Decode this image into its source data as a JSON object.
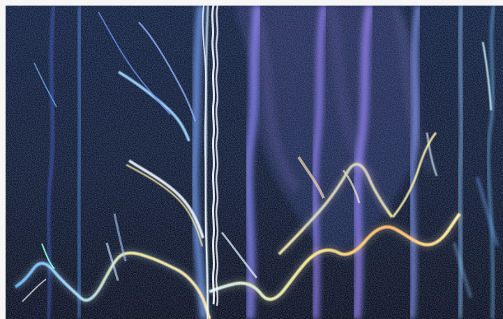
{
  "image": {
    "kind": "spectrogram-like abstract plot",
    "colors": {
      "background": "#091226",
      "background_deep": "#030712",
      "band_blue": "#5b7cff",
      "band_cyan": "#66d8ff",
      "band_violet": "#9b88ff",
      "band_pale": "#d7f0ff",
      "band_yellow": "#f4e88b",
      "band_orange": "#ffb062",
      "border": "#f6f6f6"
    }
  }
}
